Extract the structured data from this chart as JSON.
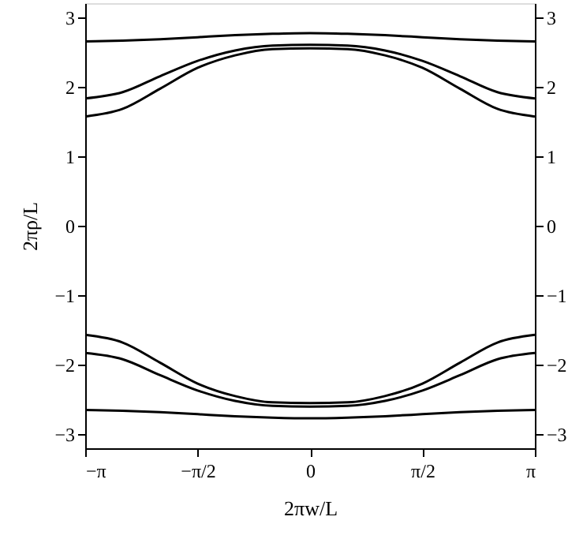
{
  "chart_data": {
    "type": "line",
    "xlabel": "2πw/L",
    "ylabel": "2πρ/L",
    "x": [
      -3.1416,
      -2.618,
      -2.0944,
      -1.5708,
      -1.0472,
      -0.5236,
      0,
      0.5236,
      1.0472,
      1.5708,
      2.0944,
      2.618,
      3.1416
    ],
    "series": [
      {
        "color": "#000000",
        "values": [
          2.65,
          2.66,
          2.68,
          2.71,
          2.74,
          2.76,
          2.77,
          2.76,
          2.74,
          2.71,
          2.68,
          2.66,
          2.65
        ]
      },
      {
        "color": "#000000",
        "values": [
          1.83,
          1.92,
          2.15,
          2.37,
          2.52,
          2.59,
          2.6,
          2.59,
          2.52,
          2.37,
          2.15,
          1.92,
          1.83
        ]
      },
      {
        "color": "#000000",
        "values": [
          1.57,
          1.68,
          1.97,
          2.27,
          2.45,
          2.54,
          2.55,
          2.54,
          2.45,
          2.27,
          1.97,
          1.68,
          1.57
        ]
      },
      {
        "color": "#000000",
        "values": [
          -1.57,
          -1.68,
          -1.97,
          -2.27,
          -2.45,
          -2.54,
          -2.55,
          -2.54,
          -2.45,
          -2.27,
          -1.97,
          -1.68,
          -1.57
        ]
      },
      {
        "color": "#000000",
        "values": [
          -1.83,
          -1.92,
          -2.15,
          -2.37,
          -2.52,
          -2.59,
          -2.6,
          -2.59,
          -2.52,
          -2.37,
          -2.15,
          -1.92,
          -1.83
        ]
      },
      {
        "color": "#000000",
        "values": [
          -2.65,
          -2.66,
          -2.68,
          -2.71,
          -2.74,
          -2.76,
          -2.77,
          -2.76,
          -2.74,
          -2.71,
          -2.68,
          -2.66,
          -2.65
        ]
      }
    ],
    "xlim": [
      -3.1416,
      3.1416
    ],
    "xticks": [
      {
        "value": -3.1416,
        "label": "−π"
      },
      {
        "value": -1.5708,
        "label": "−π/2"
      },
      0,
      {
        "value": 1.5708,
        "label": "π/2"
      },
      {
        "value": 3.1416,
        "label": "π"
      }
    ],
    "ylim": [
      -3.2,
      3.2
    ],
    "yticks": [
      -3,
      -2,
      -1,
      0,
      1,
      2,
      3
    ],
    "y2lim": [
      -3.2,
      3.2
    ],
    "y2ticks": [
      -3,
      -2,
      -1,
      0,
      1,
      2,
      3
    ],
    "grid": false,
    "marker": "none",
    "line_style": "solid"
  }
}
